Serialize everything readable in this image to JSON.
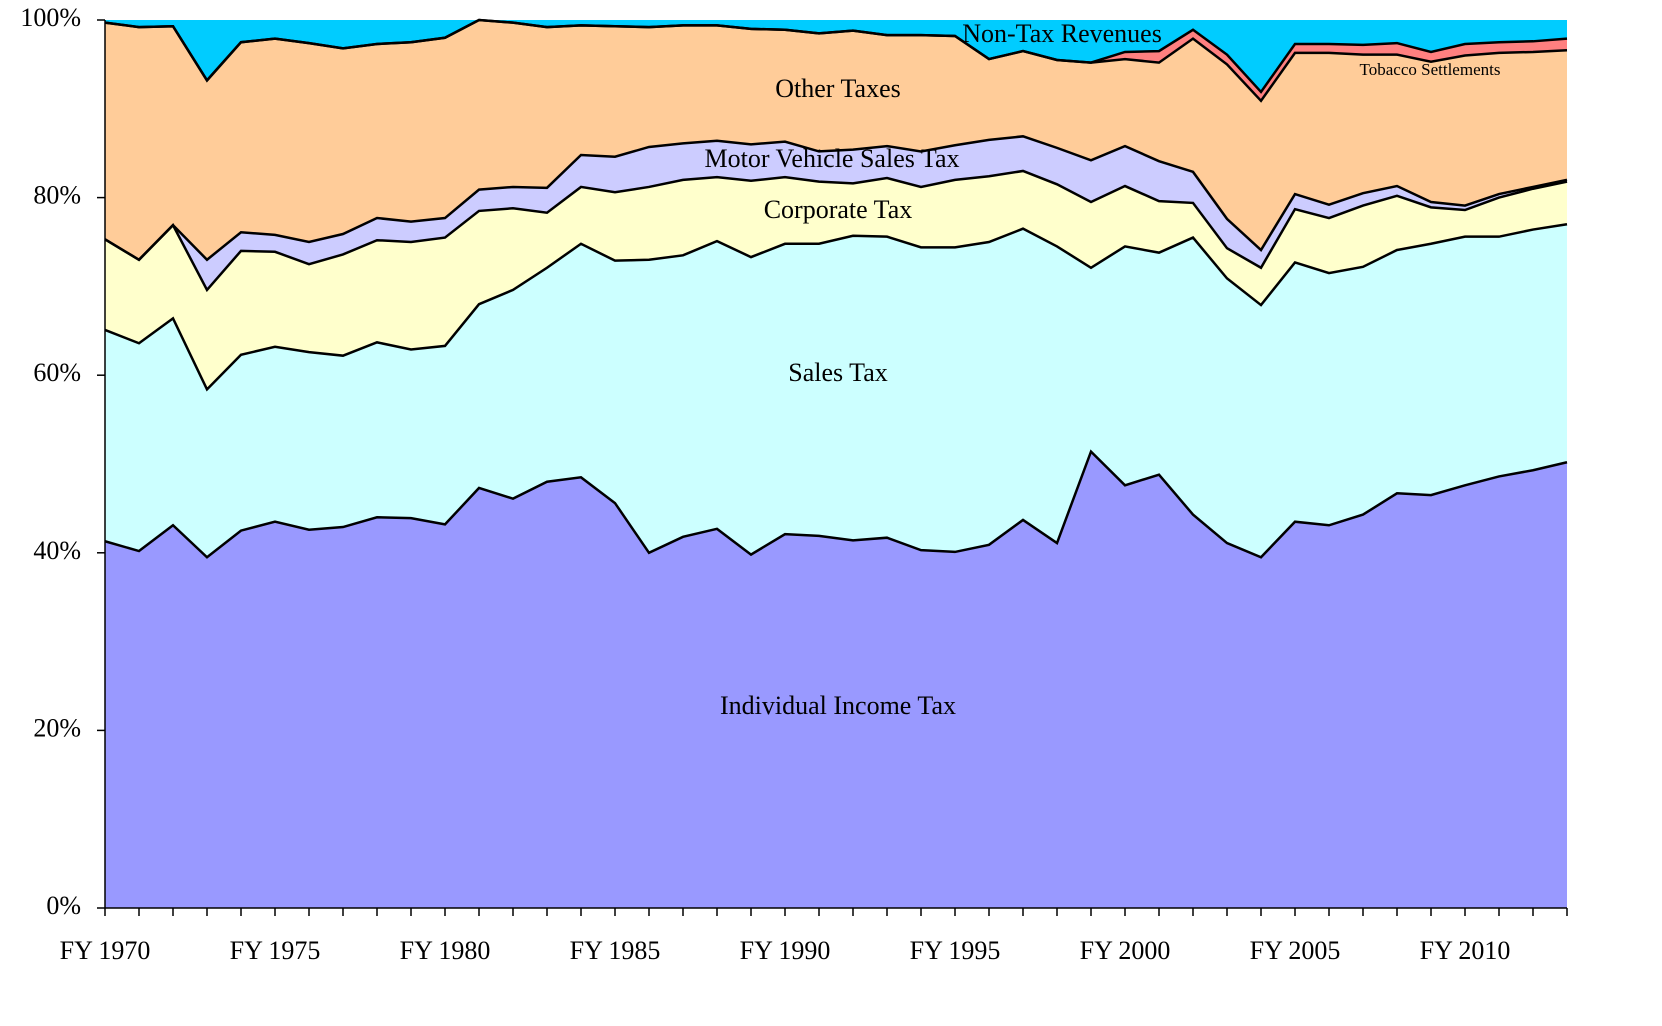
{
  "chart_data": {
    "type": "stacked-area",
    "categories": [
      "FY 1970",
      null,
      null,
      null,
      null,
      "FY 1975",
      null,
      null,
      null,
      null,
      "FY 1980",
      null,
      null,
      null,
      null,
      "FY 1985",
      null,
      null,
      null,
      null,
      "FY 1990",
      null,
      null,
      null,
      null,
      "FY 1995",
      null,
      null,
      null,
      null,
      "FY 2000",
      null,
      null,
      null,
      null,
      "FY 2005",
      null,
      null,
      null,
      null,
      "FY 2010",
      null,
      null,
      null
    ],
    "series": [
      {
        "name": "Individual Income Tax",
        "color": "#9999ff",
        "values": [
          41.3,
          40.2,
          43.1,
          39.5,
          42.5,
          43.5,
          42.6,
          42.9,
          44.0,
          43.9,
          43.2,
          47.3,
          46.1,
          48.0,
          48.5,
          45.6,
          40.0,
          41.8,
          42.7,
          39.8,
          42.1,
          41.9,
          41.4,
          41.7,
          40.3,
          40.1,
          40.9,
          43.7,
          41.1,
          51.4,
          47.6,
          48.8,
          44.3,
          41.1,
          39.5,
          43.5,
          43.1,
          44.3,
          46.7,
          46.5,
          47.6,
          48.6,
          49.3,
          50.2
        ]
      },
      {
        "name": "Sales Tax",
        "color": "#ccffff",
        "values": [
          23.8,
          23.4,
          23.3,
          18.9,
          19.8,
          19.7,
          20.0,
          19.3,
          19.7,
          19.0,
          20.1,
          20.7,
          23.5,
          24.1,
          26.3,
          27.3,
          33.0,
          31.7,
          32.4,
          33.5,
          32.7,
          32.9,
          34.3,
          33.9,
          34.1,
          34.3,
          34.1,
          32.8,
          33.4,
          20.7,
          26.9,
          25.0,
          31.2,
          29.8,
          28.4,
          29.2,
          28.4,
          27.9,
          27.4,
          28.3,
          28.0,
          27.0,
          27.1,
          26.8
        ]
      },
      {
        "name": "Corporate Tax",
        "color": "#ffffcc",
        "values": [
          10.2,
          9.4,
          10.5,
          11.2,
          11.7,
          10.7,
          9.9,
          11.4,
          11.5,
          12.1,
          12.2,
          10.5,
          9.2,
          6.2,
          6.4,
          7.7,
          8.2,
          8.5,
          7.2,
          8.6,
          7.5,
          7.0,
          5.9,
          6.6,
          6.8,
          7.6,
          7.4,
          6.5,
          7.0,
          7.4,
          6.8,
          5.8,
          3.9,
          3.4,
          4.2,
          6.0,
          6.2,
          6.9,
          6.1,
          4.1,
          3.0,
          4.4,
          4.6,
          4.8
        ]
      },
      {
        "name": "Motor Vehicle Sales Tax",
        "color": "#ccccff",
        "values": [
          0,
          0,
          0,
          3.4,
          2.1,
          1.9,
          2.5,
          2.3,
          2.5,
          2.3,
          2.2,
          2.4,
          2.4,
          2.8,
          3.6,
          4.0,
          4.5,
          4.1,
          4.1,
          4.1,
          4.0,
          3.4,
          3.8,
          3.6,
          4.0,
          3.9,
          4.1,
          3.9,
          4.1,
          4.7,
          4.5,
          4.5,
          3.5,
          3.3,
          2.0,
          1.7,
          1.5,
          1.4,
          1.1,
          0.6,
          0.5,
          0.4,
          0.2,
          0.2
        ]
      },
      {
        "name": "Other Taxes",
        "color": "#ffcc99",
        "values": [
          24.4,
          26.2,
          22.4,
          20.2,
          21.4,
          22.1,
          22.4,
          20.9,
          19.6,
          20.2,
          20.3,
          19.1,
          18.5,
          18.1,
          14.6,
          14.7,
          13.5,
          13.3,
          13.0,
          13.0,
          12.6,
          13.3,
          13.4,
          12.5,
          13.1,
          12.3,
          9.1,
          9.6,
          9.9,
          11.0,
          9.8,
          11.1,
          15.0,
          17.4,
          16.8,
          15.9,
          17.1,
          15.6,
          14.8,
          15.8,
          16.9,
          15.9,
          15.2,
          14.6
        ]
      },
      {
        "name": "Tobacco Settlements",
        "color": "#ff8080",
        "values": [
          0,
          0,
          0,
          0,
          0,
          0,
          0,
          0,
          0,
          0,
          0,
          0,
          0,
          0,
          0,
          0,
          0,
          0,
          0,
          0,
          0,
          0,
          0,
          0,
          0,
          0,
          0,
          0,
          0,
          0,
          0.8,
          1.3,
          1.0,
          1.1,
          1.0,
          1.0,
          1.0,
          1.1,
          1.3,
          1.1,
          1.3,
          1.2,
          1.2,
          1.3
        ]
      },
      {
        "name": "Non-Tax Revenues",
        "color": "#00ccff",
        "values": [
          0.3,
          0.8,
          0.7,
          6.8,
          2.5,
          2.1,
          2.6,
          3.2,
          2.7,
          2.5,
          2.0,
          0.0,
          0.3,
          0.8,
          0.6,
          0.7,
          0.8,
          0.6,
          0.6,
          1.0,
          1.1,
          1.5,
          1.2,
          1.7,
          1.7,
          1.8,
          4.4,
          3.5,
          4.5,
          4.8,
          3.6,
          3.5,
          1.1,
          3.9,
          8.1,
          2.7,
          2.7,
          2.8,
          2.6,
          3.6,
          2.7,
          2.5,
          2.4,
          2.1
        ]
      }
    ],
    "ylim": [
      0,
      100
    ],
    "yticks": [
      {
        "value": 0,
        "label": "0%"
      },
      {
        "value": 20,
        "label": "20%"
      },
      {
        "value": 40,
        "label": "40%"
      },
      {
        "value": 60,
        "label": "60%"
      },
      {
        "value": 80,
        "label": "80%"
      },
      {
        "value": 100,
        "label": "100%"
      }
    ]
  }
}
